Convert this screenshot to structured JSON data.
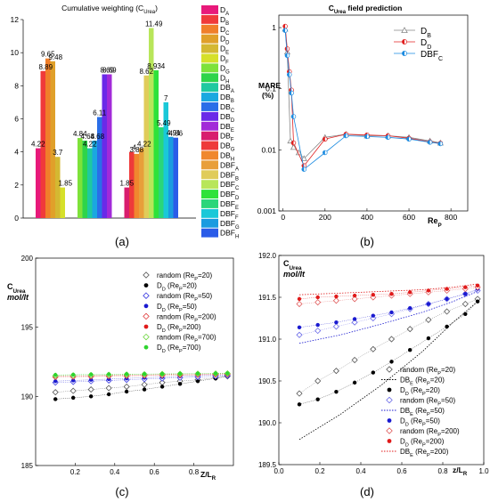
{
  "panels": {
    "a": {
      "label": "(a)"
    },
    "b": {
      "label": "(b)"
    },
    "c": {
      "label": "(c)"
    },
    "d": {
      "label": "(d)"
    }
  },
  "chart_data": [
    {
      "id": "a",
      "type": "bar",
      "title": "Cumulative weighting (C",
      "title_sub": "Urea",
      "title_end": ")",
      "ylim": [
        0,
        12
      ],
      "yticks": [
        0,
        2,
        4,
        6,
        8,
        10,
        12
      ],
      "groups": [
        {
          "bars": [
            {
              "name": "D",
              "sub": "A",
              "value": 4.22,
              "color": "#e8197a",
              "label": "4.22"
            },
            {
              "name": "D",
              "sub": "B",
              "value": 8.89,
              "color": "#f03a3a",
              "label": "8.89"
            },
            {
              "name": "D",
              "sub": "C",
              "value": 9.65,
              "color": "#f07f2a",
              "label": "9.65"
            },
            {
              "name": "D",
              "sub": "D",
              "value": 9.48,
              "color": "#e0a02a",
              "label": "9.48"
            },
            {
              "name": "D",
              "sub": "E",
              "value": 3.7,
              "color": "#d4b832",
              "label": "3.7"
            },
            {
              "name": "D",
              "sub": "F",
              "value": 1.85,
              "color": "#d6e02a",
              "label": "1.85"
            }
          ]
        },
        {
          "bars": [
            {
              "name": "D",
              "sub": "G",
              "value": 4.84,
              "color": "#7ee23a",
              "label": "4.84"
            },
            {
              "name": "D",
              "sub": "H",
              "value": 4.68,
              "color": "#2ed44a",
              "label": "4.68"
            },
            {
              "name": "DB",
              "sub": "A",
              "value": 4.22,
              "color": "#1fc9a0",
              "label": "4.22"
            },
            {
              "name": "DB",
              "sub": "B",
              "value": 4.68,
              "color": "#1aa8e0",
              "label": "4.68"
            },
            {
              "name": "DB",
              "sub": "C",
              "value": 6.11,
              "color": "#2a6ee8",
              "label": "6.11"
            },
            {
              "name": "DB",
              "sub": "D",
              "value": 8.69,
              "color": "#6a2ae8",
              "label": "8.69"
            },
            {
              "name": "DB",
              "sub": "E",
              "value": 8.69,
              "color": "#a22ad8",
              "label": "8.69"
            }
          ]
        },
        {
          "bars": [
            {
              "name": "DB",
              "sub": "F",
              "value": 1.85,
              "color": "#d81e6e",
              "label": "1.85"
            },
            {
              "name": "DB",
              "sub": "G",
              "value": 4.0,
              "color": "#ee3a3a",
              "label": "4"
            },
            {
              "name": "DB",
              "sub": "H",
              "value": 3.88,
              "color": "#f0872e",
              "label": "3.88"
            },
            {
              "name": "DBF",
              "sub": "A",
              "value": 4.22,
              "color": "#e89f3a",
              "label": "4.22"
            },
            {
              "name": "DBF",
              "sub": "B",
              "value": 8.62,
              "color": "#e0cc5a",
              "label": "8.62"
            },
            {
              "name": "DBF",
              "sub": "C",
              "value": 11.49,
              "color": "#b8e65a",
              "label": "11.49"
            },
            {
              "name": "DBF",
              "sub": "D",
              "value": 8.934,
              "color": "#2ee23a",
              "label": "8.934"
            },
            {
              "name": "DBF",
              "sub": "E",
              "value": 5.49,
              "color": "#2ad67a",
              "label": "5.49"
            },
            {
              "name": "DBF",
              "sub": "F",
              "value": 7.0,
              "color": "#1ac8d8",
              "label": "7"
            },
            {
              "name": "DBF",
              "sub": "G",
              "value": 4.91,
              "color": "#1a9be0",
              "label": "4.91"
            },
            {
              "name": "DBF",
              "sub": "H",
              "value": 4.86,
              "color": "#2a5ce8",
              "label": "4.86"
            }
          ]
        }
      ]
    },
    {
      "id": "b",
      "type": "line",
      "title": "C",
      "title_sub": "Urea",
      "title_end": " field prediction",
      "ylabel": "MARE",
      "ylabel2": "(%)",
      "xlabel": "Re",
      "xlabel_sub": "P",
      "xlim": [
        -20,
        880
      ],
      "yscale": "log",
      "ylim": [
        0.001,
        1.6
      ],
      "xticks": [
        0,
        200,
        400,
        600,
        800
      ],
      "yticks": [
        {
          "v": 0.001,
          "label": "0.001"
        },
        {
          "v": 0.01,
          "label": "0.01"
        },
        {
          "v": 0.1,
          "label": "0.1"
        },
        {
          "v": 1,
          "label": "1"
        }
      ],
      "series": [
        {
          "name": "D",
          "sub": "B",
          "color": "#888888",
          "marker": "triangle",
          "points": [
            [
              10,
              0.95
            ],
            [
              20,
              0.4
            ],
            [
              35,
              0.014
            ],
            [
              50,
              0.011
            ],
            [
              75,
              0.009
            ],
            [
              100,
              0.0072
            ],
            [
              200,
              0.016
            ],
            [
              300,
              0.018
            ],
            [
              400,
              0.017
            ],
            [
              500,
              0.017
            ],
            [
              600,
              0.016
            ],
            [
              700,
              0.014
            ],
            [
              750,
              0.013
            ]
          ]
        },
        {
          "name": "D",
          "sub": "D",
          "color": "#e02020",
          "marker": "halfcircle",
          "points": [
            [
              10,
              1.05
            ],
            [
              20,
              0.45
            ],
            [
              30,
              0.19
            ],
            [
              40,
              0.095
            ],
            [
              50,
              0.013
            ],
            [
              100,
              0.0055
            ],
            [
              200,
              0.015
            ],
            [
              300,
              0.018
            ],
            [
              400,
              0.0175
            ],
            [
              500,
              0.017
            ],
            [
              600,
              0.0155
            ],
            [
              700,
              0.0135
            ],
            [
              750,
              0.0128
            ]
          ]
        },
        {
          "name": "DBF",
          "sub": "C",
          "color": "#1a8ae0",
          "marker": "halfcircle",
          "points": [
            [
              10,
              0.9
            ],
            [
              20,
              0.35
            ],
            [
              30,
              0.17
            ],
            [
              40,
              0.085
            ],
            [
              50,
              0.035
            ],
            [
              100,
              0.0048
            ],
            [
              200,
              0.009
            ],
            [
              300,
              0.017
            ],
            [
              400,
              0.0165
            ],
            [
              500,
              0.016
            ],
            [
              600,
              0.015
            ],
            [
              700,
              0.0133
            ],
            [
              750,
              0.0126
            ]
          ]
        }
      ]
    },
    {
      "id": "c",
      "type": "scatter",
      "ylabel": "C",
      "ylabel_sub": "Urea",
      "ylabel2": "mol/lt",
      "xlabel": "Z/L",
      "xlabel_sub": "R",
      "xlim": [
        0,
        1
      ],
      "ylim": [
        185,
        200
      ],
      "xticks": [
        0.2,
        0.4,
        0.6,
        0.8
      ],
      "yticks": [
        185,
        190,
        195,
        200
      ],
      "x": [
        0.1,
        0.19,
        0.28,
        0.37,
        0.46,
        0.55,
        0.64,
        0.73,
        0.82,
        0.91,
        0.97
      ],
      "series": [
        {
          "name": "random (Re",
          "sub": "P",
          "name_end": "=20)",
          "color": "#555555",
          "marker": "open-diamond",
          "values": [
            190.3,
            190.4,
            190.5,
            190.6,
            190.7,
            190.85,
            191.0,
            191.1,
            191.2,
            191.35,
            191.45
          ]
        },
        {
          "name": "D",
          "sub": "D",
          "name_end": " (Re",
          "sub2": "P",
          "name_end2": "=20)",
          "color": "#000000",
          "marker": "filled-circle",
          "values": [
            189.8,
            189.9,
            190.0,
            190.15,
            190.35,
            190.5,
            190.7,
            190.9,
            191.1,
            191.3,
            191.45
          ]
        },
        {
          "name": "random (Re",
          "sub": "P",
          "name_end": "=50)",
          "color": "#3a3ae0",
          "marker": "open-diamond",
          "values": [
            191.0,
            191.05,
            191.1,
            191.15,
            191.2,
            191.25,
            191.3,
            191.35,
            191.4,
            191.45,
            191.5
          ]
        },
        {
          "name": "D",
          "sub": "D",
          "name_end": " (Re",
          "sub2": "P",
          "name_end2": "=50)",
          "color": "#1a1ad0",
          "marker": "filled-circle",
          "values": [
            191.1,
            191.15,
            191.2,
            191.25,
            191.3,
            191.35,
            191.4,
            191.45,
            191.5,
            191.55,
            191.55
          ]
        },
        {
          "name": "random (Re",
          "sub": "P",
          "name_end": "=200)",
          "color": "#e03a3a",
          "marker": "open-diamond",
          "values": [
            191.4,
            191.42,
            191.44,
            191.46,
            191.48,
            191.5,
            191.52,
            191.54,
            191.56,
            191.58,
            191.6
          ]
        },
        {
          "name": "D",
          "sub": "D",
          "name_end": " (Re",
          "sub2": "P",
          "name_end2": "=200)",
          "color": "#e01a1a",
          "marker": "filled-circle",
          "values": [
            191.45,
            191.47,
            191.49,
            191.51,
            191.53,
            191.55,
            191.57,
            191.59,
            191.61,
            191.63,
            191.65
          ]
        },
        {
          "name": "random (Re",
          "sub": "P",
          "name_end": "=700)",
          "color": "#6ad43a",
          "marker": "open-diamond",
          "values": [
            191.5,
            191.52,
            191.54,
            191.56,
            191.58,
            191.6,
            191.62,
            191.63,
            191.64,
            191.65,
            191.66
          ]
        },
        {
          "name": "D",
          "sub": "D",
          "name_end": " (Re",
          "sub2": "P",
          "name_end2": "=700)",
          "color": "#2ed42e",
          "marker": "filled-circle",
          "values": [
            191.55,
            191.57,
            191.59,
            191.6,
            191.61,
            191.62,
            191.63,
            191.64,
            191.65,
            191.66,
            191.67
          ]
        }
      ]
    },
    {
      "id": "d",
      "type": "scatter",
      "ylabel": "C",
      "ylabel_sub": "Urea",
      "ylabel2": "mol/lt",
      "xlabel": "z/L",
      "xlabel_sub": "R",
      "xlim": [
        0,
        1
      ],
      "ylim": [
        189.5,
        192
      ],
      "xticks": [
        0,
        0.2,
        0.4,
        0.6,
        0.8,
        1.0
      ],
      "xtick_labels": [
        "0.0",
        "0.2",
        "0.4",
        "0.6",
        "0.8",
        "1.0"
      ],
      "yticks": [
        189.5,
        190.0,
        190.5,
        191.0,
        191.5,
        192.0
      ],
      "ytick_labels": [
        "189.5",
        "190.0",
        "190.5",
        "191.0",
        "191.5",
        "192.0"
      ],
      "x": [
        0.1,
        0.19,
        0.28,
        0.37,
        0.46,
        0.55,
        0.64,
        0.73,
        0.82,
        0.91,
        0.97
      ],
      "series": [
        {
          "name": "random (Re",
          "sub": "P",
          "name_end": "=20)",
          "color": "#555555",
          "marker": "open-diamond",
          "values": [
            190.35,
            190.5,
            190.62,
            190.75,
            190.88,
            191.0,
            191.12,
            191.23,
            191.33,
            191.42,
            191.48
          ]
        },
        {
          "name": "DB",
          "sub": "E",
          "name_end": " (Re",
          "sub2": "P",
          "name_end2": "=20)",
          "color": "#000000",
          "marker": "dot-line",
          "curve": [
            [
              0.1,
              189.8
            ],
            [
              0.3,
              190.1
            ],
            [
              0.5,
              190.45
            ],
            [
              0.7,
              190.85
            ],
            [
              0.85,
              191.2
            ],
            [
              0.97,
              191.45
            ]
          ]
        },
        {
          "name": "D",
          "sub": "D",
          "name_end": " (Re",
          "sub2": "P",
          "name_end2": "=20)",
          "color": "#000000",
          "marker": "filled-circle",
          "values": [
            190.22,
            190.28,
            190.37,
            190.48,
            190.6,
            190.73,
            190.87,
            191.01,
            191.15,
            191.3,
            191.45
          ]
        },
        {
          "name": "random (Re",
          "sub": "P",
          "name_end": "=50)",
          "color": "#6a6ae8",
          "marker": "open-diamond",
          "values": [
            191.05,
            191.1,
            191.15,
            191.2,
            191.25,
            191.3,
            191.36,
            191.42,
            191.48,
            191.54,
            191.58
          ]
        },
        {
          "name": "DB",
          "sub": "E",
          "name_end": " (Re",
          "sub2": "P",
          "name_end2": "=50)",
          "color": "#1a1ad0",
          "marker": "dot-line",
          "curve": [
            [
              0.1,
              190.95
            ],
            [
              0.3,
              191.05
            ],
            [
              0.5,
              191.18
            ],
            [
              0.7,
              191.32
            ],
            [
              0.85,
              191.45
            ],
            [
              0.97,
              191.57
            ]
          ]
        },
        {
          "name": "D",
          "sub": "D",
          "name_end": " (Re",
          "sub2": "P",
          "name_end2": "=50)",
          "color": "#1a1ad0",
          "marker": "filled-circle",
          "values": [
            191.14,
            191.17,
            191.2,
            191.24,
            191.28,
            191.32,
            191.37,
            191.42,
            191.48,
            191.54,
            191.6
          ]
        },
        {
          "name": "random (Re",
          "sub": "P",
          "name_end": "=200)",
          "color": "#e05a5a",
          "marker": "open-diamond",
          "values": [
            191.42,
            191.44,
            191.46,
            191.48,
            191.5,
            191.52,
            191.54,
            191.56,
            191.58,
            191.6,
            191.62
          ]
        },
        {
          "name": "D",
          "sub": "D",
          "name_end": " (Re",
          "sub2": "P",
          "name_end2": "=200)",
          "color": "#e01a1a",
          "marker": "filled-circle",
          "values": [
            191.48,
            191.5,
            191.51,
            191.52,
            191.53,
            191.54,
            191.56,
            191.58,
            191.6,
            191.62,
            191.64
          ]
        },
        {
          "name": "DB",
          "sub": "E",
          "name_end": " (Re",
          "sub2": "P",
          "name_end2": "=200)",
          "color": "#e01a1a",
          "marker": "dot-line",
          "curve": [
            [
              0.1,
              191.53
            ],
            [
              0.3,
              191.55
            ],
            [
              0.5,
              191.57
            ],
            [
              0.7,
              191.59
            ],
            [
              0.85,
              191.62
            ],
            [
              0.97,
              191.66
            ]
          ]
        }
      ]
    }
  ]
}
